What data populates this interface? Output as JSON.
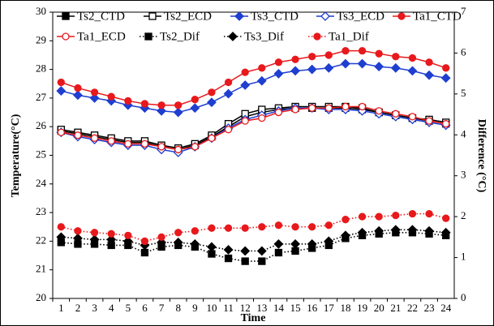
{
  "chart_data": {
    "type": "line",
    "x_label": "Time",
    "y_label": "Temperature(°C)",
    "y2_label": "Difference (°C)",
    "categories": [
      "1",
      "2",
      "3",
      "4",
      "5",
      "6",
      "7",
      "8",
      "9",
      "10",
      "11",
      "12",
      "13",
      "14",
      "15",
      "16",
      "17",
      "18",
      "19",
      "20",
      "21",
      "22",
      "23",
      "24"
    ],
    "ylim": [
      20,
      30
    ],
    "yticks": [
      20,
      21,
      22,
      23,
      24,
      25,
      26,
      27,
      28,
      29,
      30
    ],
    "y2lim": [
      0,
      7
    ],
    "y2ticks": [
      0,
      1,
      2,
      3,
      4,
      5,
      6,
      7
    ],
    "legend": "top-left",
    "series": [
      {
        "name": "Ts2_CTD",
        "color": "#000000",
        "marker": "square",
        "filled": true,
        "line": "solid",
        "axis": "y",
        "values": [
          25.85,
          25.75,
          25.65,
          25.55,
          25.45,
          25.45,
          25.3,
          25.2,
          25.35,
          25.65,
          26.0,
          26.35,
          26.5,
          26.6,
          26.65,
          26.65,
          26.65,
          26.65,
          26.6,
          26.5,
          26.4,
          26.3,
          26.2,
          26.1
        ]
      },
      {
        "name": "Ts2_ECD",
        "color": "#000000",
        "marker": "square",
        "filled": false,
        "line": "solid",
        "axis": "y",
        "values": [
          25.9,
          25.8,
          25.7,
          25.6,
          25.5,
          25.5,
          25.35,
          25.25,
          25.4,
          25.7,
          26.1,
          26.45,
          26.6,
          26.65,
          26.7,
          26.7,
          26.7,
          26.7,
          26.65,
          26.5,
          26.4,
          26.3,
          26.25,
          26.15
        ]
      },
      {
        "name": "Ts3_CTD",
        "color": "#1f3fd0",
        "marker": "diamond",
        "filled": true,
        "line": "solid",
        "axis": "y",
        "values": [
          27.25,
          27.1,
          27.0,
          26.9,
          26.75,
          26.65,
          26.55,
          26.5,
          26.65,
          26.85,
          27.15,
          27.45,
          27.6,
          27.85,
          27.95,
          28.0,
          28.05,
          28.2,
          28.2,
          28.1,
          28.05,
          27.95,
          27.8,
          27.7
        ]
      },
      {
        "name": "Ts3_ECD",
        "color": "#1f3fd0",
        "marker": "diamond",
        "filled": false,
        "line": "solid",
        "axis": "y",
        "values": [
          25.8,
          25.65,
          25.55,
          25.45,
          25.35,
          25.35,
          25.2,
          25.1,
          25.3,
          25.6,
          25.95,
          26.25,
          26.4,
          26.55,
          26.65,
          26.65,
          26.6,
          26.6,
          26.55,
          26.45,
          26.35,
          26.25,
          26.15,
          26.05
        ]
      },
      {
        "name": "Ta1_CTD",
        "color": "#e8191c",
        "marker": "circle",
        "filled": true,
        "line": "solid",
        "axis": "y",
        "values": [
          27.55,
          27.35,
          27.2,
          27.05,
          26.9,
          26.8,
          26.75,
          26.75,
          26.95,
          27.2,
          27.55,
          27.9,
          28.05,
          28.25,
          28.35,
          28.45,
          28.5,
          28.65,
          28.65,
          28.55,
          28.45,
          28.4,
          28.25,
          28.05
        ]
      },
      {
        "name": "Ta1_ECD",
        "color": "#e8191c",
        "marker": "circle",
        "filled": false,
        "line": "solid",
        "axis": "y",
        "values": [
          25.8,
          25.7,
          25.6,
          25.5,
          25.4,
          25.4,
          25.3,
          25.2,
          25.3,
          25.6,
          25.9,
          26.2,
          26.3,
          26.5,
          26.6,
          26.65,
          26.65,
          26.7,
          26.7,
          26.55,
          26.45,
          26.35,
          26.2,
          26.1
        ]
      },
      {
        "name": "Ts2_Dif",
        "color": "#000000",
        "marker": "square",
        "filled": true,
        "line": "dotted",
        "axis": "y2",
        "values": [
          1.37,
          1.33,
          1.33,
          1.3,
          1.3,
          1.12,
          1.26,
          1.3,
          1.26,
          1.09,
          0.98,
          0.91,
          0.91,
          1.12,
          1.16,
          1.23,
          1.3,
          1.47,
          1.54,
          1.58,
          1.61,
          1.61,
          1.58,
          1.54
        ]
      },
      {
        "name": "Ts3_Dif",
        "color": "#000000",
        "marker": "diamond",
        "filled": true,
        "line": "dotted",
        "axis": "y2",
        "values": [
          1.5,
          1.47,
          1.44,
          1.44,
          1.4,
          1.3,
          1.37,
          1.37,
          1.33,
          1.26,
          1.19,
          1.16,
          1.16,
          1.33,
          1.33,
          1.33,
          1.4,
          1.54,
          1.61,
          1.65,
          1.68,
          1.68,
          1.65,
          1.61
        ]
      },
      {
        "name": "Ta1_Dif",
        "color": "#e8191c",
        "marker": "circle",
        "filled": true,
        "line": "dotted",
        "axis": "y2",
        "values": [
          1.75,
          1.65,
          1.61,
          1.58,
          1.54,
          1.4,
          1.5,
          1.61,
          1.65,
          1.72,
          1.72,
          1.72,
          1.75,
          1.79,
          1.75,
          1.75,
          1.79,
          1.93,
          2.0,
          2.0,
          2.03,
          2.07,
          2.07,
          1.96
        ]
      }
    ]
  }
}
